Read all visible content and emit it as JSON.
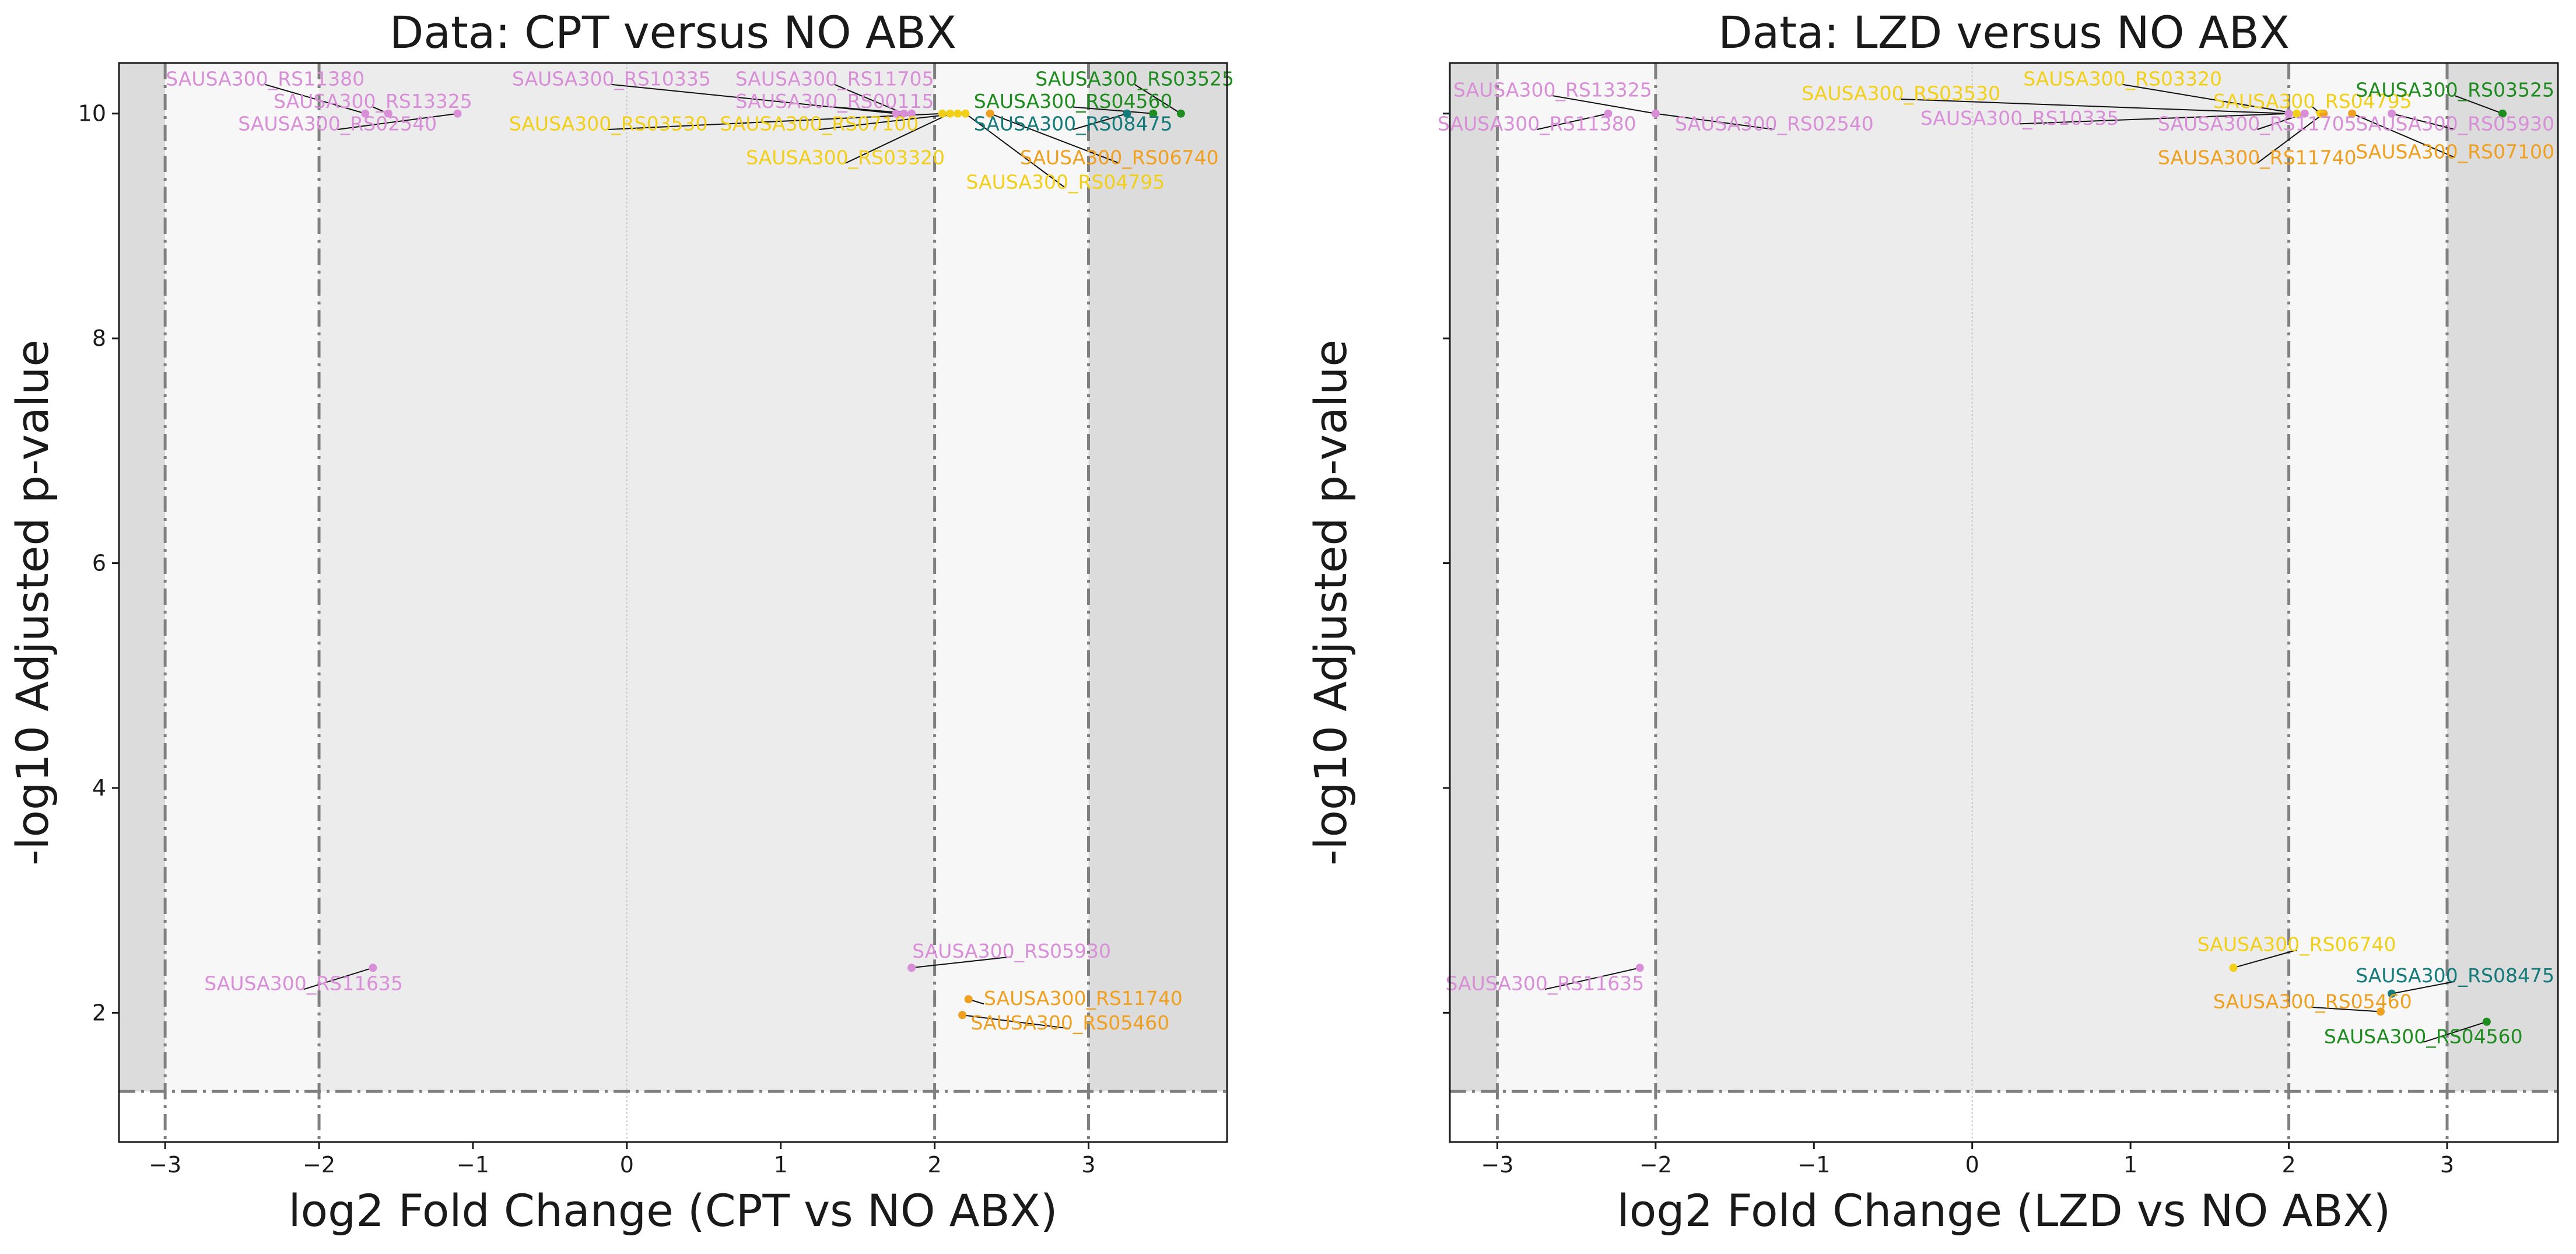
{
  "colors": {
    "outer_region": "#dcdcdc",
    "mid_region": "#f7f7f7",
    "inner_region": "#ececec",
    "guide_line": "#808080",
    "zero_line": "#c8c8c8",
    "pink": "#d88fd8",
    "yellow": "#f2d01a",
    "orange": "#f0a020",
    "green": "#1e8c1e",
    "teal": "#157a7a"
  },
  "chart_data": [
    {
      "type": "scatter",
      "title": "Data: CPT versus NO ABX",
      "xlabel": "log2 Fold Change (CPT vs NO ABX)",
      "ylabel": "-log10 Adjusted p-value",
      "xlim": [
        -3.3,
        3.9
      ],
      "ylim": [
        0.85,
        10.45
      ],
      "xticks": [
        -3,
        -2,
        -1,
        0,
        1,
        2,
        3
      ],
      "yticks": [
        2,
        4,
        6,
        8,
        10
      ],
      "vlines": [
        -3,
        -2,
        2,
        3
      ],
      "hline": 1.3,
      "zero_line": 0,
      "grid": false,
      "points": [
        {
          "name": "SAUSA300_RS11380",
          "x": -1.7,
          "y": 10.0,
          "color": "pink",
          "lx": -2.35,
          "ly": 10.3,
          "anchor": "middle"
        },
        {
          "name": "SAUSA300_RS13325",
          "x": -1.55,
          "y": 10.0,
          "color": "pink",
          "lx": -1.65,
          "ly": 10.1,
          "anchor": "middle"
        },
        {
          "name": "SAUSA300_RS02540",
          "x": -1.1,
          "y": 10.0,
          "color": "pink",
          "lx": -1.88,
          "ly": 9.9,
          "anchor": "middle"
        },
        {
          "name": "SAUSA300_RS10335",
          "x": 1.75,
          "y": 10.0,
          "color": "pink",
          "lx": -0.1,
          "ly": 10.3,
          "anchor": "middle"
        },
        {
          "name": "SAUSA300_RS11705",
          "x": 1.8,
          "y": 10.0,
          "color": "pink",
          "lx": 1.35,
          "ly": 10.3,
          "anchor": "middle"
        },
        {
          "name": "SAUSA300_RS00115",
          "x": 1.85,
          "y": 10.0,
          "color": "pink",
          "lx": 1.35,
          "ly": 10.1,
          "anchor": "middle"
        },
        {
          "name": "SAUSA300_RS03530",
          "x": 2.05,
          "y": 10.0,
          "color": "yellow",
          "lx": -0.12,
          "ly": 9.9,
          "anchor": "middle"
        },
        {
          "name": "SAUSA300_RS07100",
          "x": 2.15,
          "y": 10.0,
          "color": "yellow",
          "lx": 1.25,
          "ly": 9.9,
          "anchor": "middle"
        },
        {
          "name": "SAUSA300_RS03320",
          "x": 2.1,
          "y": 10.0,
          "color": "yellow",
          "lx": 1.42,
          "ly": 9.6,
          "anchor": "middle"
        },
        {
          "name": "SAUSA300_RS04795",
          "x": 2.2,
          "y": 10.0,
          "color": "yellow",
          "lx": 2.85,
          "ly": 9.38,
          "anchor": "middle"
        },
        {
          "name": "SAUSA300_RS06740",
          "x": 2.36,
          "y": 10.0,
          "color": "orange",
          "lx": 3.2,
          "ly": 9.6,
          "anchor": "middle"
        },
        {
          "name": "SAUSA300_RS04560",
          "x": 3.42,
          "y": 10.0,
          "color": "green",
          "lx": 2.9,
          "ly": 10.1,
          "anchor": "middle"
        },
        {
          "name": "SAUSA300_RS03525",
          "x": 3.6,
          "y": 10.0,
          "color": "green",
          "lx": 3.3,
          "ly": 10.3,
          "anchor": "middle"
        },
        {
          "name": "SAUSA300_RS08475",
          "x": 3.25,
          "y": 10.0,
          "color": "teal",
          "lx": 2.9,
          "ly": 9.9,
          "anchor": "middle"
        },
        {
          "name": "SAUSA300_RS11635",
          "x": -1.65,
          "y": 2.4,
          "color": "pink",
          "lx": -2.1,
          "ly": 2.25,
          "anchor": "middle"
        },
        {
          "name": "SAUSA300_RS05930",
          "x": 1.85,
          "y": 2.4,
          "color": "pink",
          "lx": 2.5,
          "ly": 2.54,
          "anchor": "middle"
        },
        {
          "name": "SAUSA300_RS11740",
          "x": 2.22,
          "y": 2.12,
          "color": "orange",
          "lx": 2.32,
          "ly": 2.12,
          "anchor": "start"
        },
        {
          "name": "SAUSA300_RS05460",
          "x": 2.18,
          "y": 1.98,
          "color": "orange",
          "lx": 2.88,
          "ly": 1.9,
          "anchor": "middle"
        }
      ]
    },
    {
      "type": "scatter",
      "title": "Data: LZD versus NO ABX",
      "xlabel": "log2 Fold Change (LZD vs NO ABX)",
      "ylabel": "-log10 Adjusted p-value",
      "xlim": [
        -3.3,
        3.7
      ],
      "ylim": [
        0.85,
        10.45
      ],
      "xticks": [
        -3,
        -2,
        -1,
        0,
        1,
        2,
        3
      ],
      "yticks": [
        2,
        4,
        6,
        8,
        10
      ],
      "vlines": [
        -3,
        -2,
        2,
        3
      ],
      "hline": 1.3,
      "zero_line": 0,
      "grid": false,
      "points": [
        {
          "name": "SAUSA300_RS13325",
          "x": -2.0,
          "y": 10.0,
          "color": "pink",
          "lx": -2.65,
          "ly": 10.2,
          "anchor": "middle"
        },
        {
          "name": "SAUSA300_RS11380",
          "x": -2.3,
          "y": 10.0,
          "color": "pink",
          "lx": -2.75,
          "ly": 9.9,
          "anchor": "middle"
        },
        {
          "name": "SAUSA300_RS02540",
          "x": -2.0,
          "y": 10.0,
          "color": "pink",
          "lx": -1.25,
          "ly": 9.9,
          "anchor": "middle"
        },
        {
          "name": "SAUSA300_RS03530",
          "x": 2.0,
          "y": 10.0,
          "color": "yellow",
          "lx": -0.45,
          "ly": 10.17,
          "anchor": "middle"
        },
        {
          "name": "SAUSA300_RS03320",
          "x": 2.05,
          "y": 10.0,
          "color": "yellow",
          "lx": 0.95,
          "ly": 10.3,
          "anchor": "middle"
        },
        {
          "name": "SAUSA300_RS10335",
          "x": 2.0,
          "y": 10.0,
          "color": "pink",
          "lx": 0.3,
          "ly": 9.95,
          "anchor": "middle"
        },
        {
          "name": "SAUSA300_RS11705",
          "x": 2.1,
          "y": 10.0,
          "color": "pink",
          "lx": 1.8,
          "ly": 9.9,
          "anchor": "middle"
        },
        {
          "name": "SAUSA300_RS04795",
          "x": 2.2,
          "y": 10.0,
          "color": "yellow",
          "lx": 2.15,
          "ly": 10.1,
          "anchor": "middle"
        },
        {
          "name": "SAUSA300_RS11740",
          "x": 2.22,
          "y": 10.0,
          "color": "orange",
          "lx": 1.8,
          "ly": 9.6,
          "anchor": "middle"
        },
        {
          "name": "SAUSA300_RS07100",
          "x": 2.4,
          "y": 10.0,
          "color": "orange",
          "lx": 3.05,
          "ly": 9.65,
          "anchor": "middle"
        },
        {
          "name": "SAUSA300_RS05930",
          "x": 2.65,
          "y": 10.0,
          "color": "pink",
          "lx": 3.05,
          "ly": 9.9,
          "anchor": "middle"
        },
        {
          "name": "SAUSA300_RS03525",
          "x": 3.35,
          "y": 10.0,
          "color": "green",
          "lx": 3.05,
          "ly": 10.2,
          "anchor": "middle"
        },
        {
          "name": "SAUSA300_RS11635",
          "x": -2.1,
          "y": 2.4,
          "color": "pink",
          "lx": -2.7,
          "ly": 2.25,
          "anchor": "middle"
        },
        {
          "name": "SAUSA300_RS06740",
          "x": 1.65,
          "y": 2.4,
          "color": "yellow",
          "lx": 2.05,
          "ly": 2.6,
          "anchor": "middle"
        },
        {
          "name": "SAUSA300_RS08475",
          "x": 2.65,
          "y": 2.17,
          "color": "teal",
          "lx": 3.05,
          "ly": 2.32,
          "anchor": "middle"
        },
        {
          "name": "SAUSA300_RS05460",
          "x": 2.58,
          "y": 2.01,
          "color": "orange",
          "lx": 2.15,
          "ly": 2.09,
          "anchor": "middle"
        },
        {
          "name": "SAUSA300_RS04560",
          "x": 3.25,
          "y": 1.92,
          "color": "green",
          "lx": 2.85,
          "ly": 1.78,
          "anchor": "middle"
        }
      ]
    }
  ]
}
